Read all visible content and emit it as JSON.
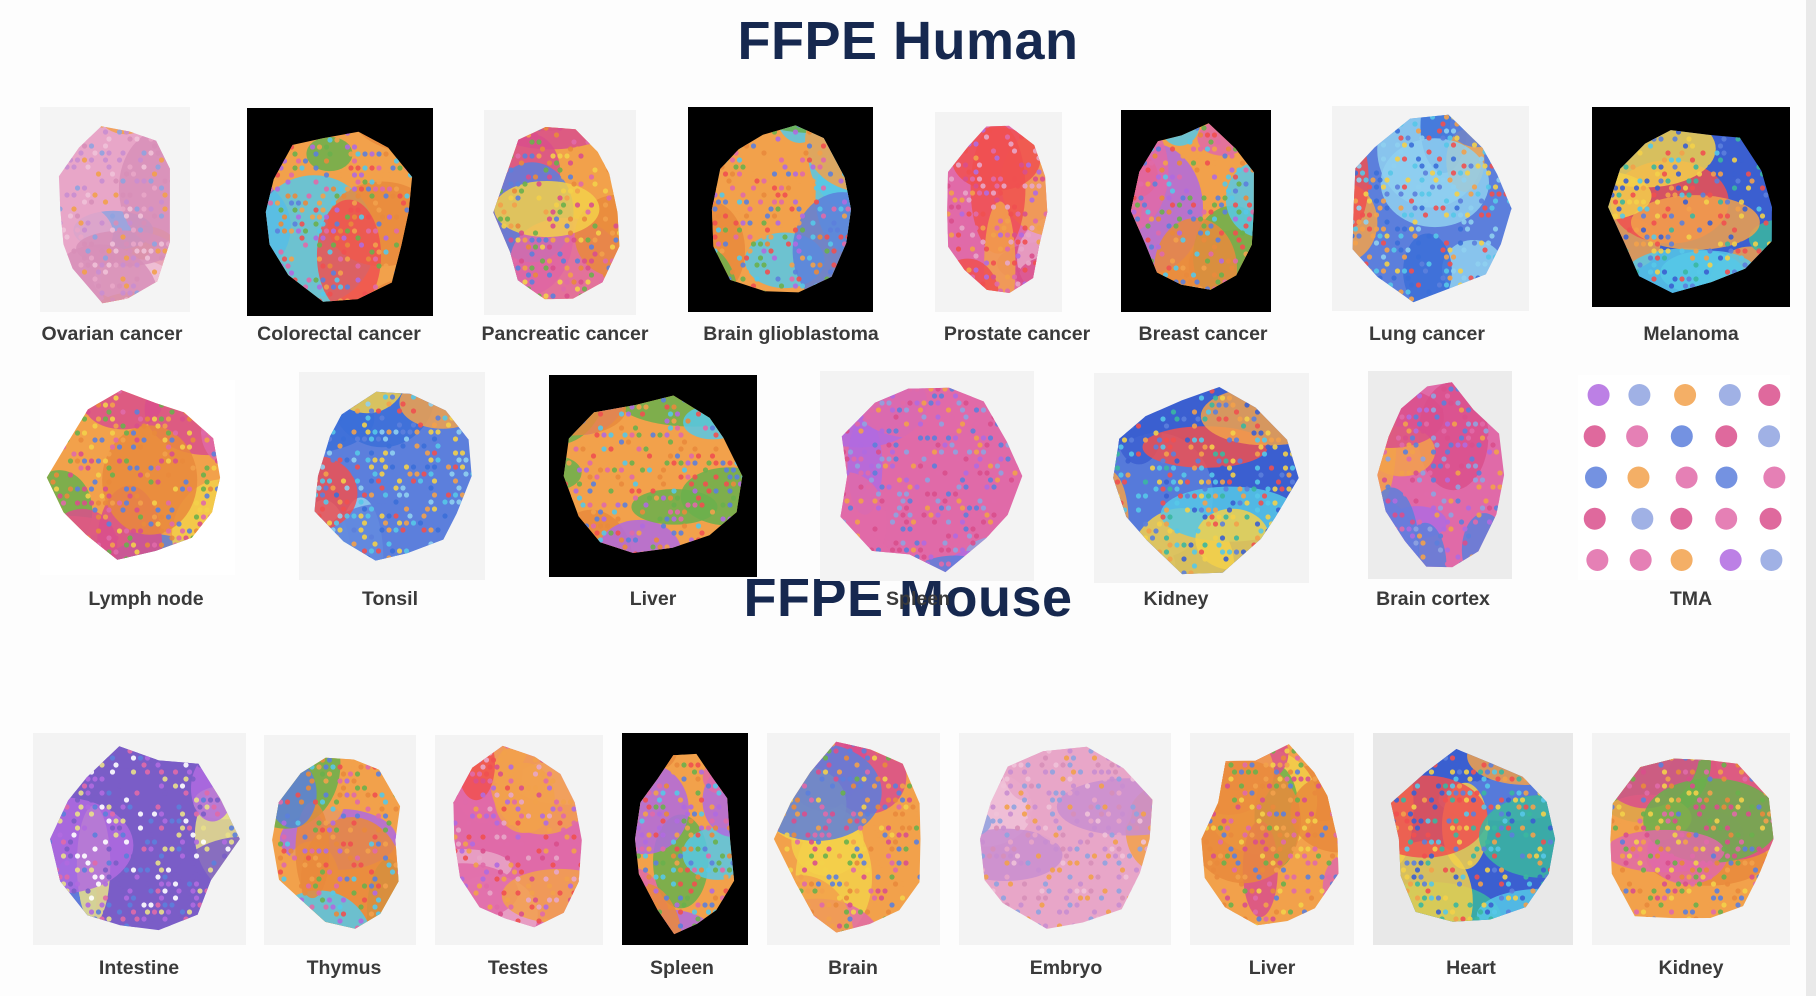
{
  "human_heading": "FFPE Human",
  "mouse_heading": "FFPE Mouse",
  "palette": [
    "#f2a14b",
    "#5c7fdc",
    "#e06aa8",
    "#6ab04c",
    "#b06ae0",
    "#f05050",
    "#f3d04a",
    "#56c8e8",
    "#7a5dc7",
    "#e98a3c",
    "#3bb7a0",
    "#d94f8c"
  ],
  "human_row1": [
    {
      "label": "Ovarian cancer",
      "bg": "#f4f4f4",
      "theme": "pale-pink"
    },
    {
      "label": "Colorectal cancer",
      "bg": "#000000",
      "theme": "mixed"
    },
    {
      "label": "Pancreatic cancer",
      "bg": "#f3f3f3",
      "theme": "orange-pink"
    },
    {
      "label": "Brain glioblastoma",
      "bg": "#000000",
      "theme": "mixed"
    },
    {
      "label": "Prostate cancer",
      "bg": "#f3f3f3",
      "theme": "pink-orange"
    },
    {
      "label": "Breast cancer",
      "bg": "#000000",
      "theme": "mixed"
    },
    {
      "label": "Lung cancer",
      "bg": "#f3f3f3",
      "theme": "blue-yellow"
    },
    {
      "label": "Melanoma",
      "bg": "#000000",
      "theme": "blue-orange"
    }
  ],
  "human_row2": [
    {
      "label": "Lymph node",
      "bg": "#ffffff",
      "theme": "orange-pink"
    },
    {
      "label": "Tonsil",
      "bg": "#f3f3f3",
      "theme": "blue-yellow"
    },
    {
      "label": "Liver",
      "bg": "#000000",
      "theme": "mixed"
    },
    {
      "label": "Spleen",
      "bg": "#f3f3f3",
      "theme": "pink-blue"
    },
    {
      "label": "Kidney",
      "bg": "#f3f3f3",
      "theme": "blue-orange"
    },
    {
      "label": "Brain cortex",
      "bg": "#ececec",
      "theme": "pink-blue"
    },
    {
      "label": "TMA",
      "bg": "#ffffff",
      "theme": "tma"
    }
  ],
  "mouse_row": [
    {
      "label": "Intestine",
      "bg": "#f3f3f3",
      "theme": "swirl"
    },
    {
      "label": "Thymus",
      "bg": "#f3f3f3",
      "theme": "mixed"
    },
    {
      "label": "Testes",
      "bg": "#f3f3f3",
      "theme": "pink-orange"
    },
    {
      "label": "Spleen",
      "bg": "#000000",
      "theme": "mixed"
    },
    {
      "label": "Brain",
      "bg": "#f3f3f3",
      "theme": "orange-pink"
    },
    {
      "label": "Embryo",
      "bg": "#f3f3f3",
      "theme": "pale-pink"
    },
    {
      "label": "Liver",
      "bg": "#f3f3f3",
      "theme": "orange-pink"
    },
    {
      "label": "Heart",
      "bg": "#e8e8e8",
      "theme": "blue-orange"
    },
    {
      "label": "Kidney",
      "bg": "#f3f3f3",
      "theme": "orange-pink"
    }
  ]
}
